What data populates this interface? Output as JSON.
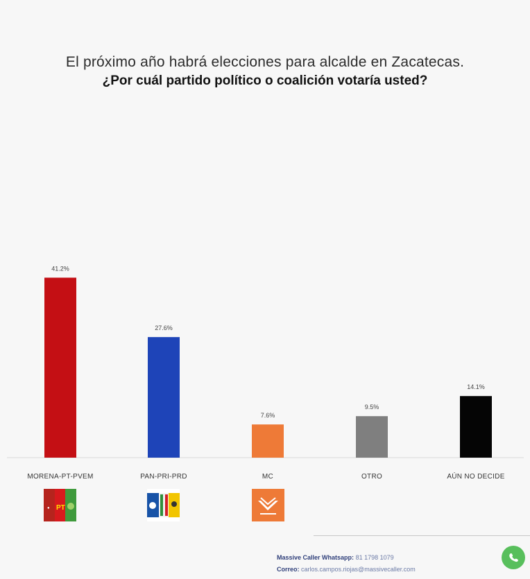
{
  "titles": {
    "line1": "El próximo año habrá elecciones para alcalde en Zacatecas.",
    "line2": "¿Por cuál partido político o coalición votaría usted?"
  },
  "chart_data": {
    "type": "bar",
    "title": "El próximo año habrá elecciones para alcalde en Zacatecas. ¿Por cuál partido político o coalición votaría usted?",
    "categories": [
      "MORENA-PT-PVEM",
      "PAN-PRI-PRD",
      "MC",
      "OTRO",
      "AÚN NO DECIDE"
    ],
    "values": [
      41.2,
      27.6,
      7.6,
      9.5,
      14.1
    ],
    "value_labels": [
      "41.2%",
      "27.6%",
      "7.6%",
      "9.5%",
      "14.1%"
    ],
    "colors": [
      "#c40f14",
      "#1e44b8",
      "#ee7a37",
      "#7f7f7f",
      "#050505"
    ],
    "ylim": [
      0,
      50
    ],
    "grid": false,
    "legend": "none",
    "party_logos": [
      "morena-pt-pvem-logo",
      "pan-pri-prd-logo",
      "mc-logo",
      "",
      ""
    ]
  },
  "footer": {
    "whatsapp_label": "Massive Caller Whatsapp:",
    "whatsapp_number": "81 1798 1079",
    "email_label": "Correo:",
    "email": "carlos.campos.riojas@massivecaller.com",
    "icon": "whatsapp-icon"
  }
}
